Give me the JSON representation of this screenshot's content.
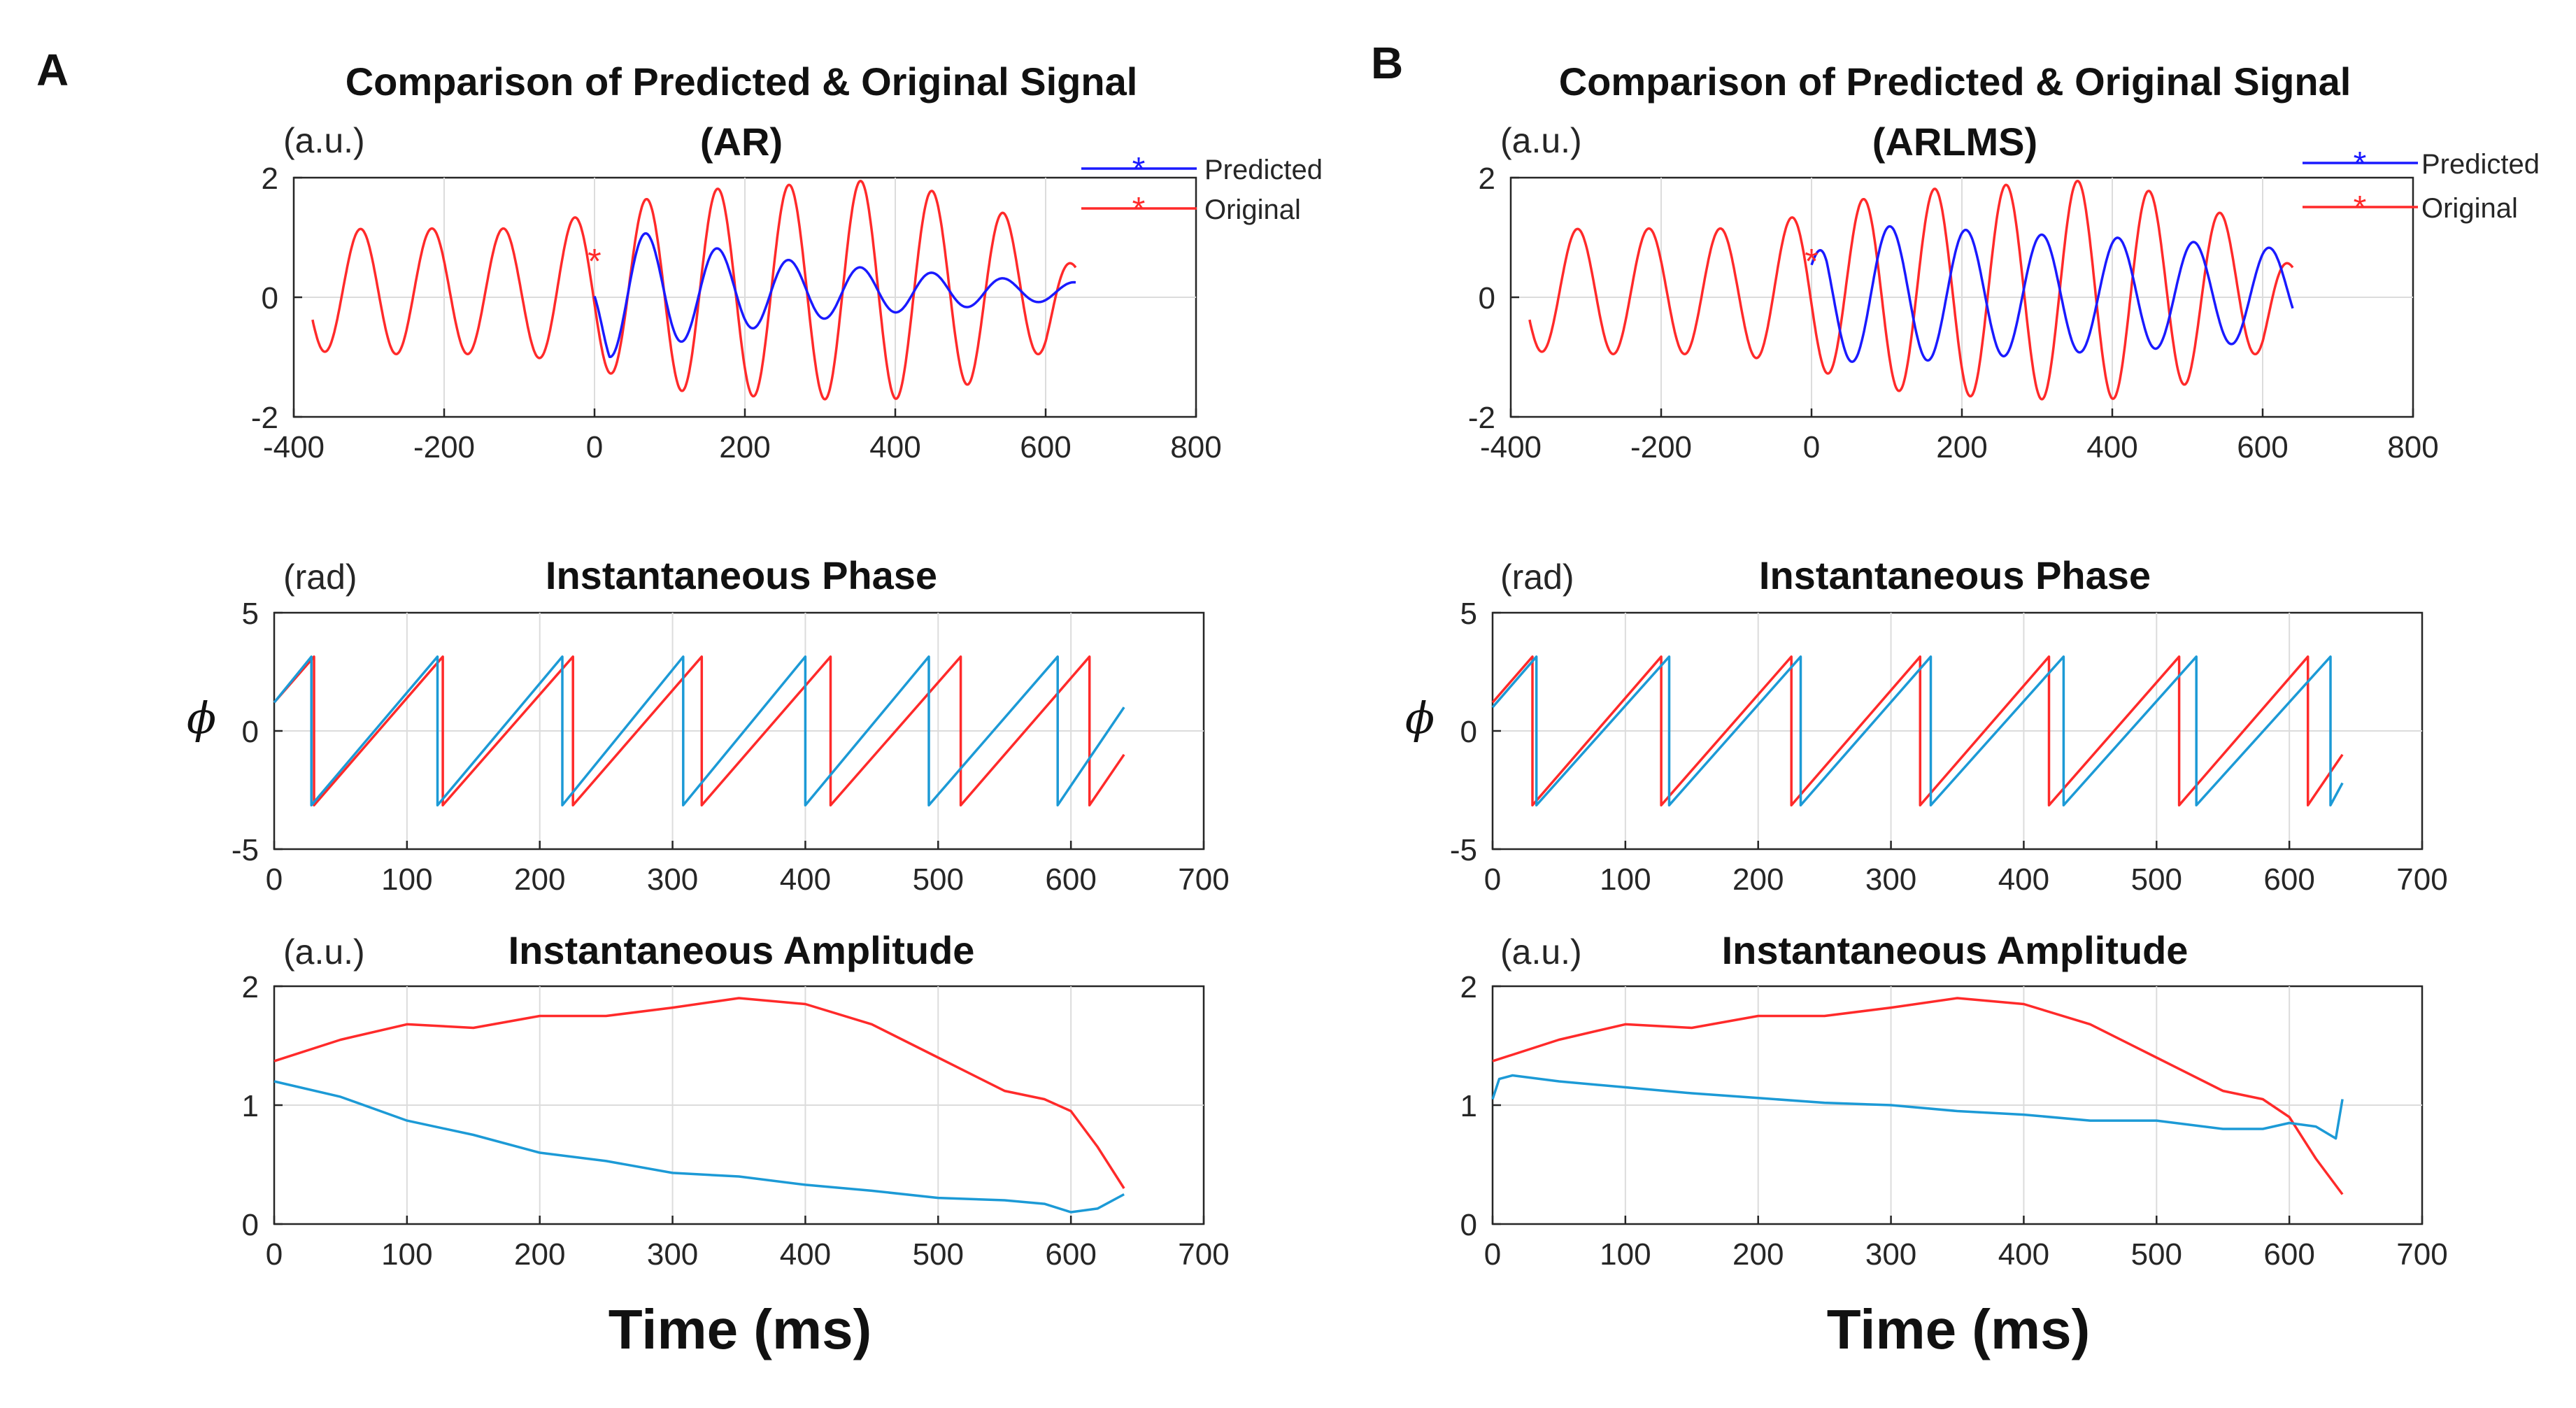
{
  "figure": {
    "panel_a_letter": "A",
    "panel_b_letter": "B",
    "xlabel": "Time (ms)",
    "colors": {
      "predicted_signal": "#1a1aff",
      "original": "#ff2a2a",
      "predicted_phase_amp": "#1c9ad6",
      "grid": "#dcdcdc",
      "axis": "#262626"
    }
  },
  "panels": [
    {
      "letter": "A",
      "signal": {
        "title1": "Comparison of Predicted & Original Signal",
        "title2": "(AR)",
        "unit": "(a.u.)",
        "legend": [
          "Predicted",
          "Original"
        ]
      },
      "phase": {
        "title": "Instantaneous Phase",
        "unit": "(rad)",
        "ylabel": "ϕ"
      },
      "amp": {
        "title": "Instantaneous Amplitude",
        "unit": "(a.u.)"
      }
    },
    {
      "letter": "B",
      "signal": {
        "title1": "Comparison of Predicted & Original Signal",
        "title2": "(ARLMS)",
        "unit": "(a.u.)",
        "legend": [
          "Predicted",
          "Original"
        ]
      },
      "phase": {
        "title": "Instantaneous Phase",
        "unit": "(rad)",
        "ylabel": "ϕ"
      },
      "amp": {
        "title": "Instantaneous Amplitude",
        "unit": "(a.u.)"
      }
    }
  ],
  "chart_data": [
    {
      "type": "line",
      "panel": "A",
      "title": "Comparison of Predicted & Original Signal (AR)",
      "ylabel": "(a.u.)",
      "xlim": [
        -400,
        800
      ],
      "ylim": [
        -2,
        2
      ],
      "xticks": [
        -400,
        -200,
        0,
        200,
        400,
        600,
        800
      ],
      "yticks": [
        -2,
        0,
        2
      ],
      "series": [
        {
          "name": "Original",
          "color": "#ff2a2a",
          "x_range": [
            -375,
            640
          ],
          "period_ms": 95,
          "phase_ms": -50,
          "offset": 0.1,
          "amplitude_knots": [
            [
              -375,
              1.0
            ],
            [
              -300,
              1.05
            ],
            [
              -100,
              1.05
            ],
            [
              0,
              1.3
            ],
            [
              100,
              1.65
            ],
            [
              200,
              1.75
            ],
            [
              300,
              1.8
            ],
            [
              360,
              1.85
            ],
            [
              400,
              1.8
            ],
            [
              500,
              1.55
            ],
            [
              600,
              1.0
            ],
            [
              640,
              0.4
            ]
          ]
        },
        {
          "name": "Predicted",
          "color": "#1a1aff",
          "x_range": [
            0,
            640
          ],
          "start_marker": [
            0,
            0.6
          ],
          "period_ms": 95,
          "phase_ms": -50,
          "offset": 0.1,
          "amplitude_knots": [
            [
              0,
              0.5
            ],
            [
              20,
              1.1
            ],
            [
              75,
              0.95
            ],
            [
              170,
              0.7
            ],
            [
              270,
              0.5
            ],
            [
              370,
              0.38
            ],
            [
              460,
              0.3
            ],
            [
              560,
              0.2
            ],
            [
              640,
              0.15
            ]
          ]
        }
      ]
    },
    {
      "type": "line",
      "panel": "A",
      "title": "Instantaneous Phase",
      "ylabel": "ϕ (rad)",
      "xlim": [
        0,
        700
      ],
      "ylim": [
        -5,
        5
      ],
      "xticks": [
        0,
        100,
        200,
        300,
        400,
        500,
        600,
        700
      ],
      "yticks": [
        -5,
        0,
        5
      ],
      "series": [
        {
          "name": "Original",
          "color": "#ff2a2a",
          "start": 0,
          "end": 640,
          "start_phase": 1.2,
          "wraps": [
            30,
            127,
            225,
            322,
            419,
            517,
            614
          ],
          "end_phase": -1.0
        },
        {
          "name": "Predicted",
          "color": "#1c9ad6",
          "start": 0,
          "end": 640,
          "start_phase": 1.2,
          "wraps": [
            28,
            123,
            217,
            308,
            400,
            493,
            590
          ],
          "end_phase": 1.0
        }
      ]
    },
    {
      "type": "line",
      "panel": "A",
      "title": "Instantaneous Amplitude",
      "ylabel": "(a.u.)",
      "xlim": [
        0,
        700
      ],
      "ylim": [
        0,
        2
      ],
      "xticks": [
        0,
        100,
        200,
        300,
        400,
        500,
        600,
        700
      ],
      "yticks": [
        0,
        1,
        2
      ],
      "series": [
        {
          "name": "Original",
          "color": "#ff2a2a",
          "x": [
            0,
            50,
            100,
            150,
            200,
            250,
            300,
            350,
            400,
            450,
            500,
            550,
            580,
            600,
            620,
            640
          ],
          "y": [
            1.37,
            1.55,
            1.68,
            1.65,
            1.75,
            1.75,
            1.82,
            1.9,
            1.85,
            1.68,
            1.4,
            1.12,
            1.05,
            0.95,
            0.65,
            0.3
          ]
        },
        {
          "name": "Predicted",
          "color": "#1c9ad6",
          "x": [
            0,
            50,
            100,
            150,
            200,
            250,
            300,
            350,
            400,
            450,
            500,
            550,
            580,
            600,
            620,
            640
          ],
          "y": [
            1.2,
            1.07,
            0.87,
            0.75,
            0.6,
            0.53,
            0.43,
            0.4,
            0.33,
            0.28,
            0.22,
            0.2,
            0.17,
            0.1,
            0.13,
            0.25
          ]
        }
      ]
    },
    {
      "type": "line",
      "panel": "B",
      "title": "Comparison of Predicted & Original Signal (ARLMS)",
      "ylabel": "(a.u.)",
      "xlim": [
        -400,
        800
      ],
      "ylim": [
        -2,
        2
      ],
      "xticks": [
        -400,
        -200,
        0,
        200,
        400,
        600,
        800
      ],
      "yticks": [
        -2,
        0,
        2
      ],
      "series": [
        {
          "name": "Original",
          "color": "#ff2a2a",
          "x_range": [
            -375,
            640
          ],
          "period_ms": 95,
          "phase_ms": -50,
          "offset": 0.1,
          "amplitude_knots": [
            [
              -375,
              1.0
            ],
            [
              -300,
              1.05
            ],
            [
              -100,
              1.05
            ],
            [
              0,
              1.3
            ],
            [
              100,
              1.65
            ],
            [
              200,
              1.75
            ],
            [
              300,
              1.8
            ],
            [
              360,
              1.85
            ],
            [
              400,
              1.8
            ],
            [
              500,
              1.55
            ],
            [
              600,
              1.0
            ],
            [
              640,
              0.4
            ]
          ]
        },
        {
          "name": "Predicted",
          "color": "#1a1aff",
          "x_range": [
            0,
            640
          ],
          "start_marker": [
            0,
            0.6
          ],
          "period_ms": 101,
          "phase_ms": -22,
          "offset": 0.05,
          "amplitude_knots": [
            [
              0,
              0.5
            ],
            [
              20,
              1.1
            ],
            [
              80,
              1.15
            ],
            [
              200,
              1.08
            ],
            [
              300,
              1.0
            ],
            [
              400,
              0.95
            ],
            [
              500,
              0.88
            ],
            [
              600,
              0.8
            ],
            [
              640,
              0.7
            ]
          ]
        }
      ]
    },
    {
      "type": "line",
      "panel": "B",
      "title": "Instantaneous Phase",
      "ylabel": "ϕ (rad)",
      "xlim": [
        0,
        700
      ],
      "ylim": [
        -5,
        5
      ],
      "xticks": [
        0,
        100,
        200,
        300,
        400,
        500,
        600,
        700
      ],
      "yticks": [
        -5,
        0,
        5
      ],
      "series": [
        {
          "name": "Original",
          "color": "#ff2a2a",
          "start": 0,
          "end": 640,
          "start_phase": 1.2,
          "wraps": [
            30,
            127,
            225,
            322,
            419,
            517,
            614
          ],
          "end_phase": -1.0
        },
        {
          "name": "Predicted",
          "color": "#1c9ad6",
          "start": 0,
          "end": 640,
          "start_phase": 1.0,
          "wraps": [
            33,
            133,
            232,
            330,
            430,
            530,
            631
          ],
          "end_phase": -2.2
        }
      ]
    },
    {
      "type": "line",
      "panel": "B",
      "title": "Instantaneous Amplitude",
      "ylabel": "(a.u.)",
      "xlim": [
        0,
        700
      ],
      "ylim": [
        0,
        2
      ],
      "xticks": [
        0,
        100,
        200,
        300,
        400,
        500,
        600,
        700
      ],
      "yticks": [
        0,
        1,
        2
      ],
      "series": [
        {
          "name": "Original",
          "color": "#ff2a2a",
          "x": [
            0,
            50,
            100,
            150,
            200,
            250,
            300,
            350,
            400,
            450,
            500,
            550,
            580,
            600,
            620,
            640
          ],
          "y": [
            1.37,
            1.55,
            1.68,
            1.65,
            1.75,
            1.75,
            1.82,
            1.9,
            1.85,
            1.68,
            1.4,
            1.12,
            1.05,
            0.9,
            0.55,
            0.25
          ]
        },
        {
          "name": "Predicted",
          "color": "#1c9ad6",
          "x": [
            0,
            5,
            15,
            50,
            100,
            150,
            200,
            250,
            300,
            350,
            400,
            450,
            500,
            550,
            580,
            600,
            620,
            635,
            640
          ],
          "y": [
            1.05,
            1.22,
            1.25,
            1.2,
            1.15,
            1.1,
            1.06,
            1.02,
            1.0,
            0.95,
            0.92,
            0.87,
            0.87,
            0.8,
            0.8,
            0.85,
            0.82,
            0.72,
            1.05
          ]
        }
      ]
    }
  ]
}
